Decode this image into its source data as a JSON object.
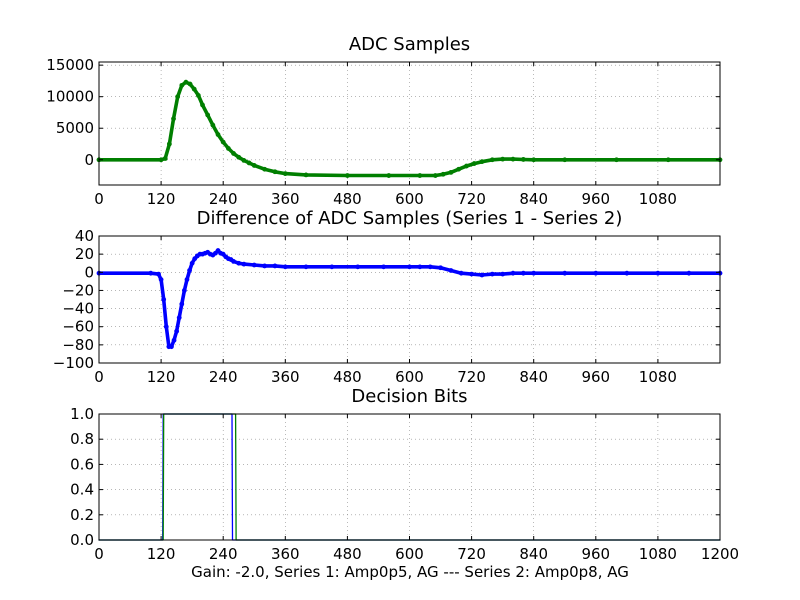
{
  "chart_data": [
    {
      "id": "adc",
      "type": "line",
      "title": "ADC Samples",
      "xlim": [
        0,
        1200
      ],
      "ylim": [
        -4000,
        15500
      ],
      "xticks": [
        0,
        120,
        240,
        360,
        480,
        600,
        720,
        840,
        960,
        1080
      ],
      "yticks": [
        0,
        5000,
        10000,
        15000
      ],
      "ytick_labels": [
        "0",
        "5000",
        "10000",
        "15000"
      ],
      "grid": true,
      "color": "#007f00",
      "marker": "dot",
      "series": [
        {
          "name": "ADC samples",
          "x": [
            0,
            120,
            128,
            136,
            144,
            152,
            160,
            168,
            176,
            184,
            192,
            200,
            210,
            220,
            230,
            240,
            250,
            260,
            270,
            280,
            290,
            300,
            320,
            340,
            360,
            400,
            480,
            560,
            620,
            650,
            665,
            680,
            695,
            710,
            725,
            740,
            760,
            780,
            800,
            820,
            840,
            900,
            1000,
            1100,
            1200
          ],
          "values": [
            0,
            0,
            200,
            2500,
            6500,
            10000,
            11800,
            12300,
            12000,
            11200,
            10200,
            8700,
            7100,
            5500,
            4000,
            2800,
            1800,
            1000,
            400,
            -100,
            -500,
            -900,
            -1500,
            -1900,
            -2200,
            -2400,
            -2500,
            -2500,
            -2500,
            -2500,
            -2300,
            -2000,
            -1500,
            -1000,
            -600,
            -300,
            0,
            100,
            100,
            50,
            0,
            0,
            0,
            0,
            0
          ]
        }
      ]
    },
    {
      "id": "diff",
      "type": "line",
      "title": "Difference of ADC Samples (Series 1 - Series 2)",
      "xlim": [
        0,
        1200
      ],
      "ylim": [
        -100,
        40
      ],
      "xticks": [
        0,
        120,
        240,
        360,
        480,
        600,
        720,
        840,
        960,
        1080
      ],
      "yticks": [
        -100,
        -80,
        -60,
        -40,
        -20,
        0,
        20,
        40
      ],
      "ytick_labels": [
        "−100",
        "−80",
        "−60",
        "−40",
        "−20",
        "0",
        "20",
        "40"
      ],
      "grid": true,
      "color": "#0000ff",
      "marker": "dot",
      "series": [
        {
          "name": "Series 1 - Series 2",
          "x": [
            0,
            100,
            115,
            120,
            125,
            130,
            135,
            140,
            145,
            150,
            155,
            160,
            165,
            170,
            175,
            180,
            185,
            190,
            195,
            200,
            205,
            210,
            215,
            220,
            225,
            230,
            235,
            240,
            245,
            250,
            255,
            260,
            270,
            280,
            300,
            320,
            340,
            360,
            400,
            450,
            500,
            550,
            600,
            620,
            640,
            660,
            680,
            700,
            720,
            740,
            760,
            780,
            800,
            820,
            840,
            900,
            960,
            1020,
            1080,
            1140,
            1200
          ],
          "values": [
            -1,
            -1,
            -2,
            -8,
            -30,
            -60,
            -82,
            -82,
            -75,
            -65,
            -50,
            -35,
            -20,
            -8,
            2,
            10,
            15,
            18,
            20,
            20,
            21,
            22,
            20,
            19,
            21,
            24,
            21,
            20,
            17,
            15,
            14,
            12,
            10,
            9,
            8,
            7,
            7,
            6,
            6,
            6,
            6,
            6,
            6,
            6,
            6,
            5,
            2,
            -1,
            -2,
            -3,
            -2,
            -2,
            -1,
            -1,
            -1,
            -1,
            -1,
            -1,
            -1,
            -1,
            -1
          ]
        }
      ]
    },
    {
      "id": "bits",
      "type": "line",
      "title": "Decision Bits",
      "xlim": [
        0,
        1200
      ],
      "ylim": [
        0,
        1
      ],
      "xticks": [
        0,
        120,
        240,
        360,
        480,
        600,
        720,
        840,
        960,
        1080,
        1200
      ],
      "yticks": [
        0,
        0.2,
        0.4,
        0.6,
        0.8,
        1.0
      ],
      "ytick_labels": [
        "0.0",
        "0.2",
        "0.4",
        "0.6",
        "0.8",
        "1.0"
      ],
      "grid": true,
      "xlabel": "Gain: -2.0, Series 1: Amp0p5, AG --- Series 2: Amp0p8, AG",
      "series": [
        {
          "name": "Series 1",
          "color": "#0000ff",
          "x": [
            0,
            123,
            124,
            257,
            258,
            1200
          ],
          "values": [
            0,
            0,
            1,
            1,
            0,
            0
          ]
        },
        {
          "name": "Series 2",
          "color": "#007f00",
          "x": [
            0,
            124,
            125,
            264,
            265,
            1200
          ],
          "values": [
            0,
            0,
            1,
            1,
            0,
            0
          ]
        }
      ]
    }
  ]
}
